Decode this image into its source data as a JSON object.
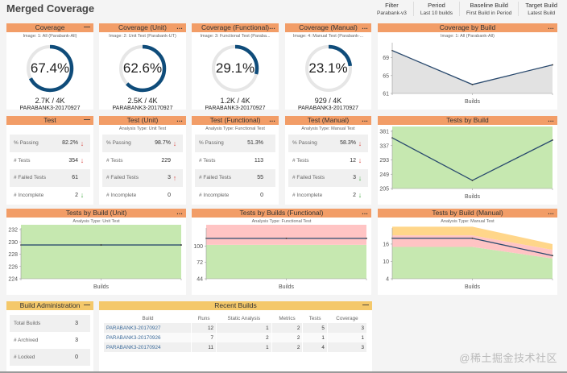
{
  "page": {
    "title": "Merged Coverage"
  },
  "filters": [
    {
      "label": "Filter",
      "value": "Parabank-v3"
    },
    {
      "label": "Period",
      "value": "Last 10 builds"
    },
    {
      "label": "Baseline Build",
      "value": "First Build in Period"
    },
    {
      "label": "Target Build",
      "value": "Latest Build"
    }
  ],
  "icons": {
    "menu": "…",
    "minimize": "—"
  },
  "colors": {
    "accent_header": "#f29d67",
    "yellow_header": "#f4c86a",
    "donut_fill": "#0f4c7a",
    "donut_track": "#e6e6e6",
    "passed": "#c6e8b0",
    "failed": "#ffc4c4",
    "incomplete": "#ffd68a",
    "coverage_area": "#e2e2e2",
    "line": "#2a4a6e"
  },
  "coverage_cards": [
    {
      "title": "Coverage",
      "subtitle": "Image: 1: All (Parabank-All)",
      "percent_label": "67.4%",
      "percent": 67.4,
      "count": "2.7K / 4K",
      "build": "PARABANK3-20170927",
      "menu": "—"
    },
    {
      "title": "Coverage (Unit)",
      "subtitle": "Image: 2: Unit Test (Parabank-UT)",
      "percent_label": "62.6%",
      "percent": 62.6,
      "count": "2.5K / 4K",
      "build": "PARABANK3-20170927",
      "menu": "…"
    },
    {
      "title": "Coverage (Functional)",
      "subtitle": "Image: 3: Functional Test (Paraba...",
      "percent_label": "29.1%",
      "percent": 29.1,
      "count": "1.2K / 4K",
      "build": "PARABANK3-20170927",
      "menu": "…"
    },
    {
      "title": "Coverage (Manual)",
      "subtitle": "Image: 4: Manual Test (Parabank-...",
      "percent_label": "23.1%",
      "percent": 23.1,
      "count": "929 / 4K",
      "build": "PARABANK3-20170927",
      "menu": "…"
    }
  ],
  "test_cards": [
    {
      "title": "Test",
      "subtitle": "",
      "menu": "—",
      "rows": [
        {
          "label": "% Passing",
          "value": "82.2%",
          "arrow": "↓",
          "trend": "downbad"
        },
        {
          "label": "# Tests",
          "value": "354",
          "arrow": "↓",
          "trend": "downbad"
        },
        {
          "label": "# Failed Tests",
          "value": "61",
          "arrow": "",
          "trend": ""
        },
        {
          "label": "# Incomplete",
          "value": "2",
          "arrow": "↓",
          "trend": "downgood"
        }
      ]
    },
    {
      "title": "Test (Unit)",
      "subtitle": "Analysis Type: Unit Test",
      "menu": "…",
      "rows": [
        {
          "label": "% Passing",
          "value": "98.7%",
          "arrow": "↓",
          "trend": "downbad"
        },
        {
          "label": "# Tests",
          "value": "229",
          "arrow": "",
          "trend": ""
        },
        {
          "label": "# Failed Tests",
          "value": "3",
          "arrow": "↑",
          "trend": "up"
        },
        {
          "label": "# Incomplete",
          "value": "0",
          "arrow": "",
          "trend": ""
        }
      ]
    },
    {
      "title": "Test (Functional)",
      "subtitle": "Analysis Type: Functional Test",
      "menu": "…",
      "rows": [
        {
          "label": "% Passing",
          "value": "51.3%",
          "arrow": "",
          "trend": ""
        },
        {
          "label": "# Tests",
          "value": "113",
          "arrow": "",
          "trend": ""
        },
        {
          "label": "# Failed Tests",
          "value": "55",
          "arrow": "",
          "trend": ""
        },
        {
          "label": "# Incomplete",
          "value": "0",
          "arrow": "",
          "trend": ""
        }
      ]
    },
    {
      "title": "Test (Manual)",
      "subtitle": "Analysis Type: Manual Test",
      "menu": "…",
      "rows": [
        {
          "label": "% Passing",
          "value": "58.3%",
          "arrow": "↓",
          "trend": "downbad"
        },
        {
          "label": "# Tests",
          "value": "12",
          "arrow": "↓",
          "trend": "downbad"
        },
        {
          "label": "# Failed Tests",
          "value": "3",
          "arrow": "↓",
          "trend": "downgood"
        },
        {
          "label": "# Incomplete",
          "value": "2",
          "arrow": "↓",
          "trend": "downgood"
        }
      ]
    }
  ],
  "chart_data": [
    {
      "id": "coverage_by_build",
      "type": "area",
      "title": "Coverage by Build",
      "subtitle": "Image: 1: All (Parabank-All)",
      "xlabel": "Builds",
      "ylabel": "",
      "ylim": [
        61,
        72
      ],
      "yticks": [
        61,
        65,
        69
      ],
      "series": [
        {
          "name": "Coverage",
          "values": [
            70.6,
            63.0,
            67.4
          ]
        }
      ]
    },
    {
      "id": "tests_by_build",
      "type": "area",
      "title": "Tests by Build",
      "subtitle": "",
      "xlabel": "Builds",
      "ylabel": "",
      "ylim": [
        205,
        381
      ],
      "yticks": [
        205,
        249,
        293,
        337,
        381
      ],
      "series": [
        {
          "name": "Passed",
          "values": [
            295,
            225,
            291
          ]
        },
        {
          "name": "Failed",
          "values": [
            66,
            5,
            61
          ]
        }
      ],
      "total": [
        361,
        230,
        354
      ]
    },
    {
      "id": "tests_by_build_unit",
      "type": "area",
      "title": "Tests by Build (Unit)",
      "subtitle": "Analysis Type: Unit Test",
      "xlabel": "Builds",
      "ylabel": "",
      "ylim": [
        224,
        232
      ],
      "yticks": [
        224,
        226,
        228,
        230,
        232
      ],
      "series": [
        {
          "name": "Passed",
          "values": [
            227.5,
            227.5,
            226.5
          ]
        },
        {
          "name": "Failed",
          "values": [
            2,
            2,
            3
          ]
        }
      ],
      "total": [
        229.5,
        229.5,
        229.5
      ]
    },
    {
      "id": "tests_by_builds_functional",
      "type": "area",
      "title": "Tests by Builds (Functional)",
      "subtitle": "Analysis Type: Functional Test",
      "xlabel": "Builds",
      "ylabel": "",
      "ylim": [
        44,
        128
      ],
      "yticks": [
        44,
        72,
        100
      ],
      "series": [
        {
          "name": "Passed",
          "values": [
            58,
            58,
            58
          ]
        },
        {
          "name": "Failed",
          "values": [
            55,
            55,
            55
          ]
        }
      ],
      "total": [
        113,
        113,
        113
      ]
    },
    {
      "id": "tests_by_build_manual",
      "type": "area",
      "title": "Tests by Build (Manual)",
      "subtitle": "Analysis Type: Manual Test",
      "xlabel": "Builds",
      "ylabel": "",
      "ylim": [
        4,
        21
      ],
      "yticks": [
        4,
        10,
        16
      ],
      "series": [
        {
          "name": "Passed",
          "values": [
            11,
            11,
            7
          ]
        },
        {
          "name": "Failed",
          "values": [
            4,
            4,
            3
          ]
        },
        {
          "name": "Incomplete",
          "values": [
            3,
            3,
            2
          ]
        }
      ],
      "total": [
        18,
        18,
        12
      ]
    }
  ],
  "build_admin": {
    "title": "Build Administration",
    "menu": "—",
    "rows": [
      {
        "label": "Total Builds",
        "value": "3"
      },
      {
        "label": "# Archived",
        "value": "3"
      },
      {
        "label": "# Locked",
        "value": "0"
      }
    ]
  },
  "recent_builds": {
    "title": "Recent Builds",
    "menu": "—",
    "columns": [
      "Build",
      "Runs",
      "Static Analysis",
      "Metrics",
      "Tests",
      "Coverage"
    ],
    "rows": [
      [
        "PARABANK3-20170927",
        "12",
        "1",
        "2",
        "5",
        "3"
      ],
      [
        "PARABANK3-20170926",
        "7",
        "2",
        "2",
        "1",
        "1"
      ],
      [
        "PARABANK3-20170924",
        "11",
        "1",
        "2",
        "4",
        "3"
      ]
    ]
  },
  "watermark": "@稀土掘金技术社区"
}
